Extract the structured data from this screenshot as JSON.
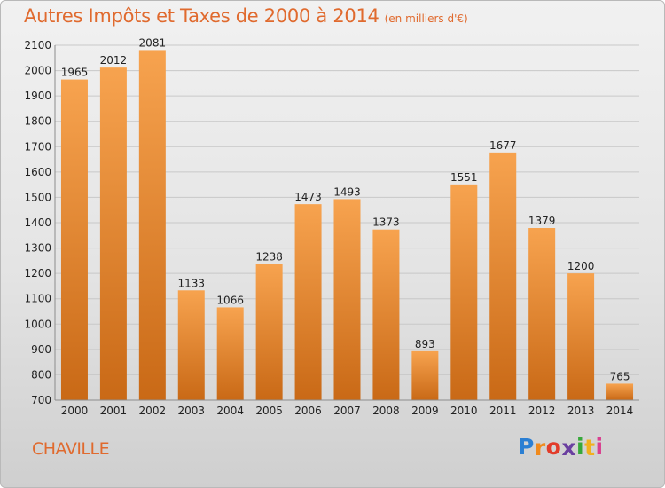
{
  "header": {
    "title": "Autres Impôts et Taxes de 2000 à 2014",
    "subtitle": "(en milliers d'€)"
  },
  "footer": {
    "place": "CHAVILLE",
    "logo": {
      "letters": [
        "P",
        "r",
        "o",
        "x",
        "i",
        "t",
        "i"
      ],
      "colors": [
        "#2b7fd3",
        "#f08a1c",
        "#e23c2a",
        "#6a3fa0",
        "#37a83a",
        "#f2b01e",
        "#d93f8f"
      ]
    }
  },
  "colors": {
    "bar_light": "#f7a34f",
    "bar_dark": "#c96916",
    "title": "#e06a2e",
    "gridline": "#c8c8c8"
  },
  "chart_data": {
    "type": "bar",
    "title": "Autres Impôts et Taxes de 2000 à 2014",
    "subtitle": "(en milliers d'€)",
    "xlabel": "",
    "ylabel": "",
    "categories": [
      "2000",
      "2001",
      "2002",
      "2003",
      "2004",
      "2005",
      "2006",
      "2007",
      "2008",
      "2009",
      "2010",
      "2011",
      "2012",
      "2013",
      "2014"
    ],
    "values": [
      1965,
      2012,
      2081,
      1133,
      1066,
      1238,
      1473,
      1493,
      1373,
      893,
      1551,
      1677,
      1379,
      1200,
      765
    ],
    "ylim": [
      700,
      2100
    ],
    "yticks": [
      700,
      800,
      900,
      1000,
      1100,
      1200,
      1300,
      1400,
      1500,
      1600,
      1700,
      1800,
      1900,
      2000,
      2100
    ],
    "grid": true,
    "legend": "none"
  }
}
